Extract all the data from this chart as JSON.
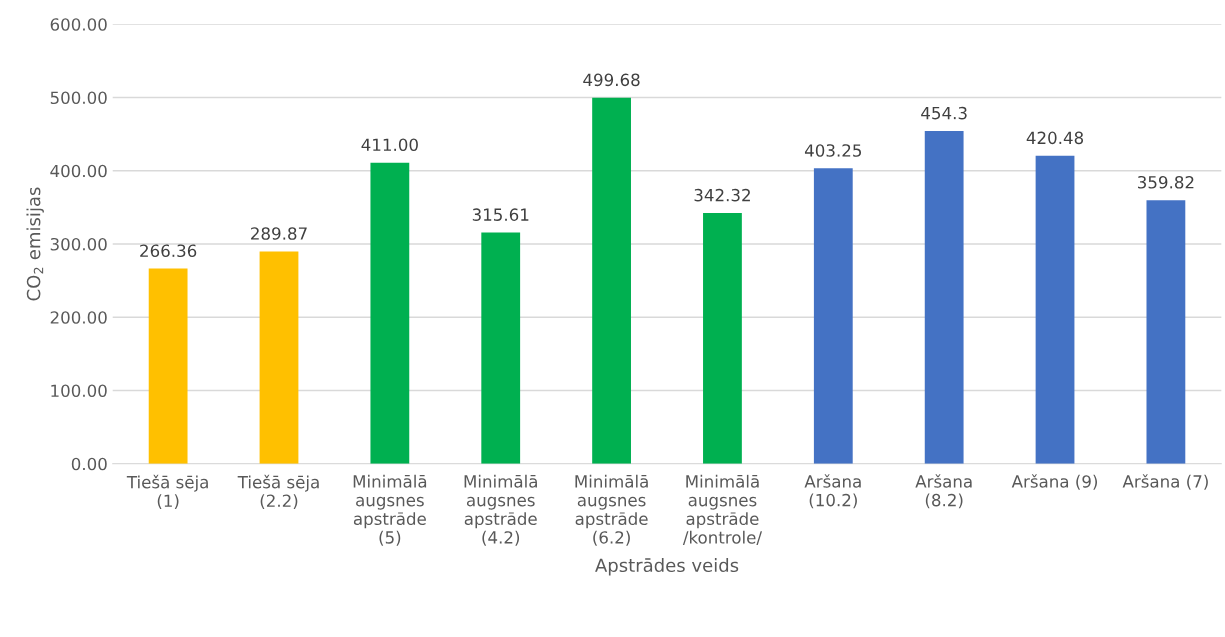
{
  "chart_data": {
    "type": "bar",
    "xlabel": "Apstrādes veids",
    "ylabel": "CO$_{2}$ emisijas",
    "categories": [
      "Tiešā sēja\n(1)",
      "Tiešā sēja\n(2.2)",
      "Minimālā\naugsnes\napstrāde\n(5)",
      "Minimālā\naugsnes\napstrāde\n(4.2)",
      "Minimālā\naugsnes\napstrāde\n(6.2)",
      "Minimālā\naugsnes\napstrāde\n/kontrole/",
      "Aršana\n(10.2)",
      "Aršana\n(8.2)",
      "Aršana (9)",
      "Aršana (7)"
    ],
    "values": [
      266.36,
      289.87,
      411.0,
      315.61,
      499.68,
      342.32,
      403.25,
      454.3,
      420.48,
      359.82
    ],
    "value_labels": [
      "266.36",
      "289.87",
      "411.00",
      "315.61",
      "499.68",
      "342.32",
      "403.25",
      "454.3",
      "420.48",
      "359.82"
    ],
    "colors": [
      "#ffc000",
      "#ffc000",
      "#00b050",
      "#00b050",
      "#00b050",
      "#00b050",
      "#4472c4",
      "#4472c4",
      "#4472c4",
      "#4472c4"
    ],
    "ylim": [
      0,
      600
    ],
    "yticks": [
      {
        "value": 0,
        "label": "0.00"
      },
      {
        "value": 100,
        "label": "100.00"
      },
      {
        "value": 200,
        "label": "200.00"
      },
      {
        "value": 300,
        "label": "300.00"
      },
      {
        "value": 400,
        "label": "400.00"
      },
      {
        "value": 500,
        "label": "500.00"
      },
      {
        "value": 600,
        "label": "600.00"
      }
    ],
    "grid": "y",
    "legend": false
  }
}
